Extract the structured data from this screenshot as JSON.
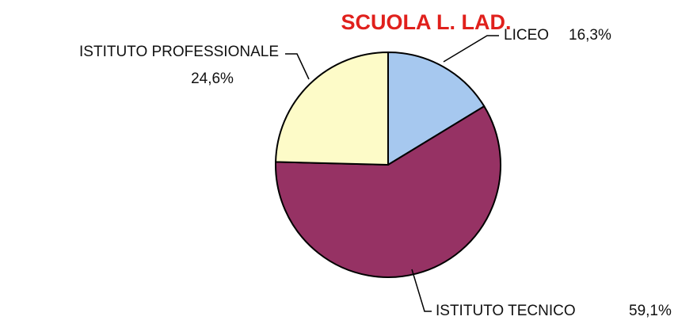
{
  "chart_data": {
    "type": "pie",
    "title": "SCUOLA L. LAD.",
    "categories": [
      "LICEO",
      "ISTITUTO TECNICO",
      "ISTITUTO PROFESSIONALE"
    ],
    "values": [
      16.3,
      59.1,
      24.6
    ],
    "value_labels": [
      "16,3%",
      "59,1%",
      "24,6%"
    ],
    "colors": [
      "#a6c8ef",
      "#963264",
      "#fdfbc8"
    ]
  }
}
